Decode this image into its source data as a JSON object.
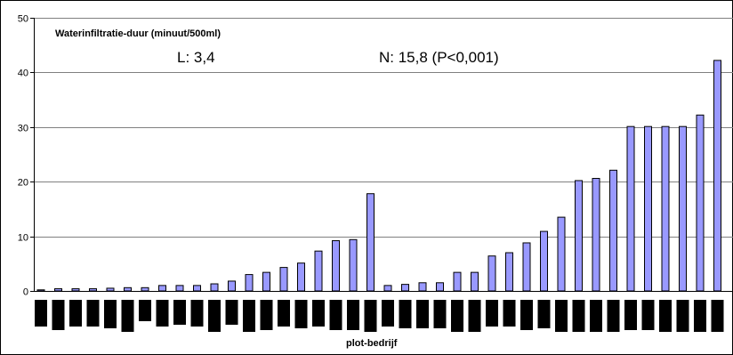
{
  "chart_data": {
    "type": "bar",
    "title": "Waterinfiltratie-duur (minuut/500ml)",
    "annotations": [
      "L: 3,4",
      "N: 15,8 (P<0,001)"
    ],
    "xlabel": "plot-bedrijf",
    "ylabel": "",
    "ylim": [
      0,
      50
    ],
    "yticks": [
      0,
      10,
      20,
      30,
      40,
      50
    ],
    "grid": true,
    "legend": "none",
    "bar_color": "#9999ff",
    "bar_edge": "#000000",
    "categories_visible": false,
    "values": [
      0.2,
      0.4,
      0.4,
      0.4,
      0.5,
      0.6,
      0.6,
      1.0,
      1.0,
      1.0,
      1.3,
      1.8,
      3.0,
      3.4,
      4.3,
      5.1,
      7.3,
      9.2,
      9.4,
      17.8,
      1.0,
      1.2,
      1.5,
      1.5,
      3.4,
      3.4,
      6.4,
      7.0,
      8.8,
      10.9,
      13.5,
      20.2,
      20.6,
      22.1,
      30.1,
      30.1,
      30.1,
      30.1,
      32.2,
      42.2
    ]
  }
}
